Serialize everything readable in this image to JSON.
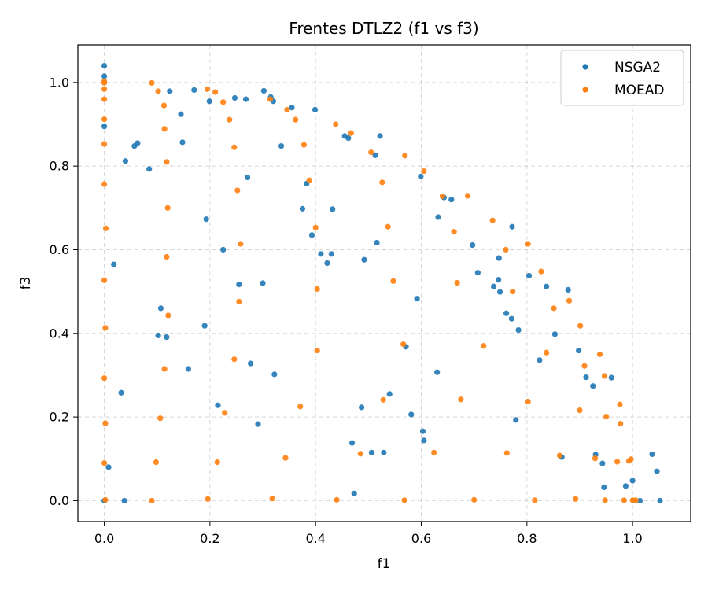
{
  "chart_data": {
    "type": "scatter",
    "title": "Frentes DTLZ2 (f1 vs f3)",
    "xlabel": "f1",
    "ylabel": "f3",
    "xlim": [
      -0.05,
      1.11
    ],
    "ylim": [
      -0.05,
      1.09
    ],
    "xticks": [
      "0.0",
      "0.2",
      "0.4",
      "0.6",
      "0.8",
      "1.0"
    ],
    "yticks": [
      "0.0",
      "0.2",
      "0.4",
      "0.6",
      "0.8",
      "1.0"
    ],
    "grid": true,
    "legend": "top-right",
    "series": [
      {
        "name": "NSGA2",
        "color": "#1f77b4",
        "points": [
          [
            0.0,
            1.04
          ],
          [
            0.0,
            1.015
          ],
          [
            0.0,
            0.895
          ],
          [
            0.0,
            0.0
          ],
          [
            0.008,
            0.08
          ],
          [
            0.018,
            0.565
          ],
          [
            0.032,
            0.258
          ],
          [
            0.038,
            0.0
          ],
          [
            0.04,
            0.812
          ],
          [
            0.057,
            0.848
          ],
          [
            0.063,
            0.855
          ],
          [
            0.085,
            0.793
          ],
          [
            0.102,
            0.395
          ],
          [
            0.107,
            0.46
          ],
          [
            0.118,
            0.391
          ],
          [
            0.124,
            0.979
          ],
          [
            0.145,
            0.924
          ],
          [
            0.148,
            0.857
          ],
          [
            0.159,
            0.315
          ],
          [
            0.17,
            0.982
          ],
          [
            0.19,
            0.418
          ],
          [
            0.193,
            0.673
          ],
          [
            0.199,
            0.955
          ],
          [
            0.215,
            0.228
          ],
          [
            0.225,
            0.6
          ],
          [
            0.247,
            0.963
          ],
          [
            0.255,
            0.517
          ],
          [
            0.268,
            0.96
          ],
          [
            0.271,
            0.773
          ],
          [
            0.277,
            0.328
          ],
          [
            0.291,
            0.183
          ],
          [
            0.3,
            0.52
          ],
          [
            0.302,
            0.98
          ],
          [
            0.315,
            0.965
          ],
          [
            0.32,
            0.955
          ],
          [
            0.322,
            0.302
          ],
          [
            0.335,
            0.848
          ],
          [
            0.355,
            0.94
          ],
          [
            0.375,
            0.698
          ],
          [
            0.383,
            0.758
          ],
          [
            0.393,
            0.635
          ],
          [
            0.399,
            0.935
          ],
          [
            0.41,
            0.59
          ],
          [
            0.422,
            0.568
          ],
          [
            0.43,
            0.59
          ],
          [
            0.432,
            0.697
          ],
          [
            0.455,
            0.872
          ],
          [
            0.462,
            0.867
          ],
          [
            0.469,
            0.138
          ],
          [
            0.473,
            0.017
          ],
          [
            0.487,
            0.223
          ],
          [
            0.492,
            0.576
          ],
          [
            0.506,
            0.115
          ],
          [
            0.513,
            0.826
          ],
          [
            0.516,
            0.617
          ],
          [
            0.522,
            0.872
          ],
          [
            0.529,
            0.115
          ],
          [
            0.54,
            0.255
          ],
          [
            0.571,
            0.368
          ],
          [
            0.581,
            0.206
          ],
          [
            0.592,
            0.483
          ],
          [
            0.599,
            0.775
          ],
          [
            0.603,
            0.166
          ],
          [
            0.605,
            0.144
          ],
          [
            0.63,
            0.307
          ],
          [
            0.632,
            0.678
          ],
          [
            0.643,
            0.725
          ],
          [
            0.657,
            0.72
          ],
          [
            0.697,
            0.611
          ],
          [
            0.707,
            0.545
          ],
          [
            0.737,
            0.512
          ],
          [
            0.746,
            0.528
          ],
          [
            0.747,
            0.58
          ],
          [
            0.749,
            0.499
          ],
          [
            0.761,
            0.448
          ],
          [
            0.771,
            0.435
          ],
          [
            0.772,
            0.655
          ],
          [
            0.779,
            0.193
          ],
          [
            0.784,
            0.408
          ],
          [
            0.804,
            0.538
          ],
          [
            0.824,
            0.336
          ],
          [
            0.837,
            0.512
          ],
          [
            0.853,
            0.398
          ],
          [
            0.866,
            0.104
          ],
          [
            0.878,
            0.504
          ],
          [
            0.898,
            0.359
          ],
          [
            0.912,
            0.295
          ],
          [
            0.925,
            0.274
          ],
          [
            0.93,
            0.11
          ],
          [
            0.943,
            0.089
          ],
          [
            0.946,
            0.032
          ],
          [
            0.96,
            0.294
          ],
          [
            0.987,
            0.035
          ],
          [
            1.0,
            0.048
          ],
          [
            1.003,
            0.0
          ],
          [
            1.014,
            0.0
          ],
          [
            1.037,
            0.111
          ],
          [
            1.046,
            0.07
          ],
          [
            1.052,
            0.0
          ]
        ]
      },
      {
        "name": "MOEAD",
        "color": "#ff7f0e",
        "points": [
          [
            0.0,
            1.003
          ],
          [
            0.0,
            0.999
          ],
          [
            0.0,
            0.984
          ],
          [
            0.0,
            0.96
          ],
          [
            0.0,
            0.912
          ],
          [
            0.0,
            0.853
          ],
          [
            0.0,
            0.757
          ],
          [
            0.003,
            0.651
          ],
          [
            0.0,
            0.527
          ],
          [
            0.002,
            0.413
          ],
          [
            0.0,
            0.293
          ],
          [
            0.002,
            0.185
          ],
          [
            0.0,
            0.09
          ],
          [
            0.002,
            0.002
          ],
          [
            0.09,
            0.999
          ],
          [
            0.09,
            0.0
          ],
          [
            0.098,
            0.092
          ],
          [
            0.102,
            0.979
          ],
          [
            0.106,
            0.197
          ],
          [
            0.113,
            0.945
          ],
          [
            0.114,
            0.889
          ],
          [
            0.114,
            0.315
          ],
          [
            0.118,
            0.81
          ],
          [
            0.118,
            0.583
          ],
          [
            0.12,
            0.7
          ],
          [
            0.121,
            0.443
          ],
          [
            0.195,
            0.984
          ],
          [
            0.196,
            0.004
          ],
          [
            0.21,
            0.977
          ],
          [
            0.214,
            0.092
          ],
          [
            0.225,
            0.953
          ],
          [
            0.228,
            0.21
          ],
          [
            0.237,
            0.911
          ],
          [
            0.246,
            0.845
          ],
          [
            0.246,
            0.338
          ],
          [
            0.252,
            0.742
          ],
          [
            0.255,
            0.476
          ],
          [
            0.258,
            0.614
          ],
          [
            0.314,
            0.96
          ],
          [
            0.318,
            0.005
          ],
          [
            0.343,
            0.102
          ],
          [
            0.346,
            0.935
          ],
          [
            0.362,
            0.911
          ],
          [
            0.371,
            0.225
          ],
          [
            0.378,
            0.851
          ],
          [
            0.388,
            0.766
          ],
          [
            0.4,
            0.653
          ],
          [
            0.403,
            0.506
          ],
          [
            0.403,
            0.359
          ],
          [
            0.438,
            0.9
          ],
          [
            0.44,
            0.002
          ],
          [
            0.467,
            0.879
          ],
          [
            0.485,
            0.112
          ],
          [
            0.505,
            0.833
          ],
          [
            0.526,
            0.761
          ],
          [
            0.528,
            0.241
          ],
          [
            0.537,
            0.655
          ],
          [
            0.547,
            0.525
          ],
          [
            0.566,
            0.374
          ],
          [
            0.568,
            0.001
          ],
          [
            0.569,
            0.825
          ],
          [
            0.605,
            0.788
          ],
          [
            0.624,
            0.115
          ],
          [
            0.64,
            0.728
          ],
          [
            0.662,
            0.643
          ],
          [
            0.668,
            0.521
          ],
          [
            0.675,
            0.242
          ],
          [
            0.688,
            0.729
          ],
          [
            0.7,
            0.002
          ],
          [
            0.718,
            0.37
          ],
          [
            0.735,
            0.67
          ],
          [
            0.76,
            0.6
          ],
          [
            0.762,
            0.114
          ],
          [
            0.773,
            0.5
          ],
          [
            0.802,
            0.614
          ],
          [
            0.802,
            0.237
          ],
          [
            0.815,
            0.001
          ],
          [
            0.827,
            0.548
          ],
          [
            0.837,
            0.354
          ],
          [
            0.851,
            0.46
          ],
          [
            0.862,
            0.108
          ],
          [
            0.88,
            0.478
          ],
          [
            0.892,
            0.004
          ],
          [
            0.9,
            0.216
          ],
          [
            0.901,
            0.418
          ],
          [
            0.909,
            0.322
          ],
          [
            0.929,
            0.101
          ],
          [
            0.938,
            0.35
          ],
          [
            0.947,
            0.298
          ],
          [
            0.948,
            0.001
          ],
          [
            0.95,
            0.201
          ],
          [
            0.971,
            0.093
          ],
          [
            0.976,
            0.23
          ],
          [
            0.977,
            0.184
          ],
          [
            0.984,
            0.001
          ],
          [
            0.993,
            0.095
          ],
          [
            0.997,
            0.099
          ],
          [
            1.0,
            0.001
          ],
          [
            1.006,
            0.001
          ]
        ]
      }
    ]
  }
}
